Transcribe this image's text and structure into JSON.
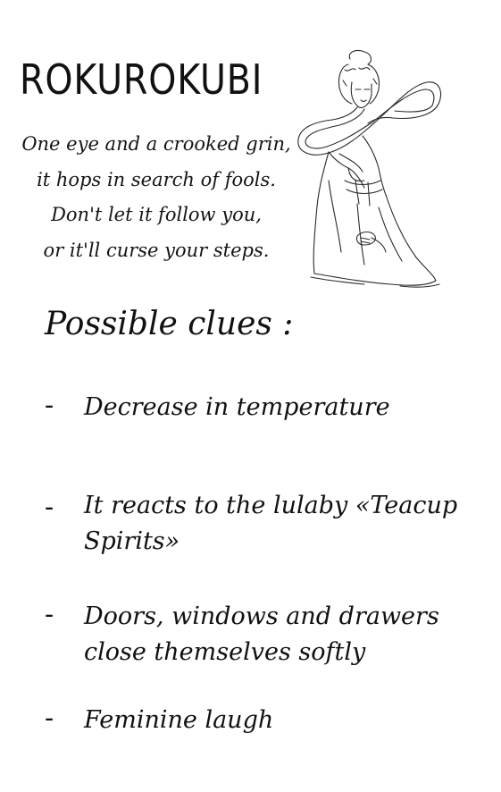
{
  "document": {
    "title": "ROKUROKUBI",
    "poem": [
      "One eye and a crooked grin,",
      "it hops in search of fools.",
      "Don't let it follow you,",
      "or it'll curse your steps."
    ],
    "clues_heading": "Possible clues :",
    "clues": [
      {
        "bullet": "-",
        "text": "Decrease in temperature"
      },
      {
        "bullet": "-",
        "text": "It reacts to the lulaby «Teacup Spirits»"
      },
      {
        "bullet": "-",
        "text": "Doors, windows and drawers close themselves softly"
      },
      {
        "bullet": "-",
        "text": "Feminine laugh"
      }
    ]
  },
  "illustration": {
    "icon": "rokurokubi-figure-icon",
    "ink_color": "#2a2a2a",
    "background": "#ffffff"
  }
}
